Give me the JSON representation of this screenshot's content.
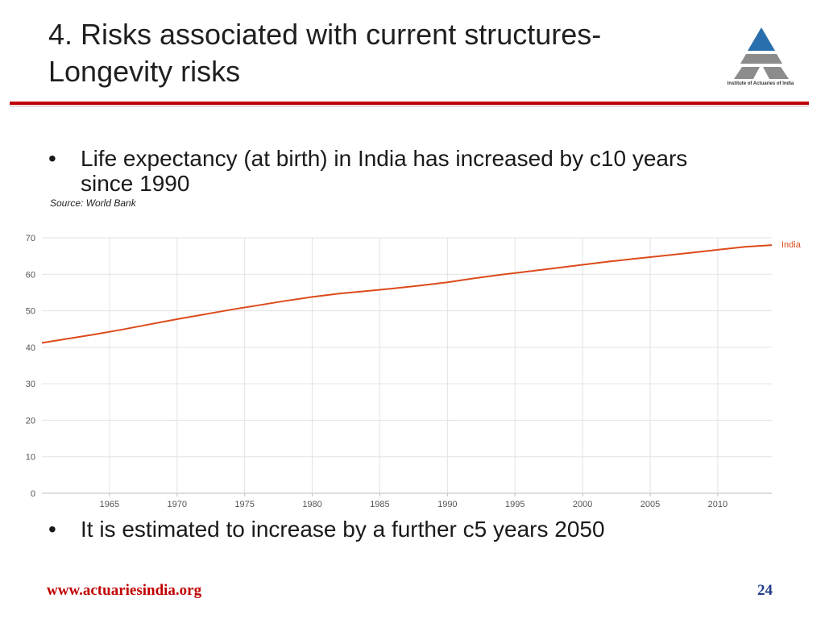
{
  "slide": {
    "title_line1": "4. Risks associated with current structures-",
    "title_line2": "Longevity risks",
    "logo_caption": "Institute of Actuaries of India",
    "bullet1_line1": "Life expectancy (at birth) in India has increased by c10 years",
    "bullet1_line2": "since 1990",
    "source": "Source: World Bank",
    "bullet2": "It is estimated to increase by a further c5 years 2050",
    "bullet_symbol": "•",
    "footer_url": "www.actuariesindia.org",
    "page_number": "24"
  },
  "colors": {
    "accent_red": "#c00000",
    "series_line": "#dc4a1b",
    "page_number": "#1f3c88",
    "logo_blue": "#2a6fad",
    "logo_gray": "#8c8c8c"
  },
  "chart_data": {
    "type": "line",
    "x": [
      1960,
      1962,
      1964,
      1966,
      1968,
      1970,
      1972,
      1974,
      1976,
      1978,
      1980,
      1982,
      1984,
      1986,
      1988,
      1990,
      1992,
      1994,
      1996,
      1998,
      2000,
      2002,
      2004,
      2006,
      2008,
      2010,
      2012,
      2014
    ],
    "series": [
      {
        "name": "India",
        "color": "#dc4a1b",
        "values": [
          41.2,
          42.4,
          43.6,
          44.9,
          46.3,
          47.7,
          49.0,
          50.3,
          51.5,
          52.7,
          53.8,
          54.7,
          55.4,
          56.1,
          56.9,
          57.8,
          58.9,
          59.9,
          60.8,
          61.7,
          62.6,
          63.5,
          64.3,
          65.1,
          65.9,
          66.7,
          67.5,
          68.0
        ]
      }
    ],
    "xlim": [
      1960,
      2014
    ],
    "ylim": [
      0,
      70
    ],
    "y_ticks": [
      0,
      10,
      20,
      30,
      40,
      50,
      60,
      70
    ],
    "x_ticks": [
      1965,
      1970,
      1975,
      1980,
      1985,
      1990,
      1995,
      2000,
      2005,
      2010
    ],
    "grid": true,
    "legend": "right-end"
  }
}
